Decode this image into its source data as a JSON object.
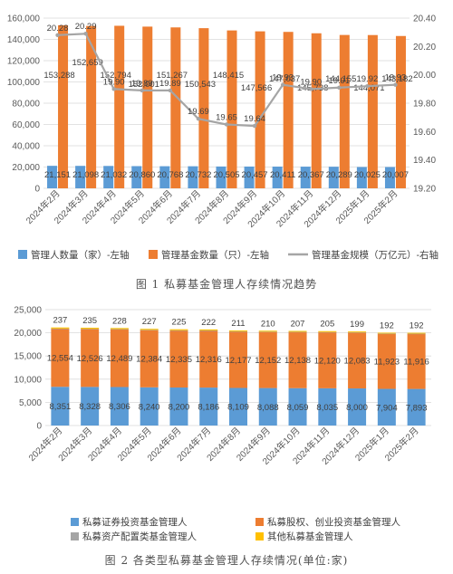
{
  "chart_data": [
    {
      "type": "bar",
      "caption": "图 1  私募基金管理人存续情况趋势",
      "categories": [
        "2024年2月",
        "2024年3月",
        "2024年4月",
        "2024年5月",
        "2024年6月",
        "2024年7月",
        "2024年8月",
        "2024年9月",
        "2024年10月",
        "2024年11月",
        "2024年12月",
        "2025年1月",
        "2025年2月"
      ],
      "series": [
        {
          "name": "管理人数量（家）-左轴",
          "axis": "left",
          "type": "bar",
          "color": "#5B9BD5",
          "values": [
            21151,
            21098,
            21032,
            20860,
            20768,
            20732,
            20505,
            20457,
            20411,
            20367,
            20289,
            20025,
            20007
          ],
          "labels": [
            "21,151",
            "21,098",
            "21,032",
            "20,860",
            "20,768",
            "20,732",
            "20,505",
            "20,457",
            "20,411",
            "20,367",
            "20,289",
            "20,025",
            "20,007"
          ]
        },
        {
          "name": "管理基金数量（只）-左轴",
          "axis": "left",
          "type": "bar",
          "color": "#ED7D31",
          "values": [
            153288,
            152659,
            152794,
            152001,
            151267,
            150543,
            148415,
            147566,
            147037,
            145738,
            144155,
            144071,
            143182
          ],
          "labels": [
            "153,288",
            "152,659",
            "152,794",
            "152,001",
            "151,267",
            "150,543",
            "148,415",
            "147,566",
            "147,037",
            "145,738",
            "144,155",
            "144,071",
            "143,182"
          ]
        },
        {
          "name": "管理基金规模（万亿元）-右轴",
          "axis": "right",
          "type": "line",
          "color": "#A5A5A5",
          "values": [
            20.28,
            20.29,
            19.9,
            19.89,
            19.89,
            19.69,
            19.65,
            19.64,
            19.93,
            19.9,
            19.91,
            19.92,
            19.93
          ],
          "labels": [
            "20.28",
            "20.29",
            "19.90",
            "19.89",
            "19.89",
            "19.69",
            "19.65",
            "19.64",
            "19.93",
            "19.90",
            "19.91",
            "19.92",
            "19.93"
          ]
        }
      ],
      "y_left": {
        "min": 0,
        "max": 160000,
        "ticks": [
          "0",
          "20,000",
          "40,000",
          "60,000",
          "80,000",
          "100,000",
          "120,000",
          "140,000",
          "160,000"
        ]
      },
      "y_right": {
        "min": 19.2,
        "max": 20.4,
        "ticks": [
          "19.20",
          "19.40",
          "19.60",
          "19.80",
          "20.00",
          "20.20",
          "20.40"
        ]
      },
      "legend_position": "bottom"
    },
    {
      "type": "bar",
      "stacked": true,
      "caption": "图 2  各类型私募基金管理人存续情况(单位:家)",
      "categories": [
        "2024年2月",
        "2024年3月",
        "2024年4月",
        "2024年5月",
        "2024年6月",
        "2024年7月",
        "2024年8月",
        "2024年9月",
        "2024年10月",
        "2024年11月",
        "2024年12月",
        "2025年1月",
        "2025年2月"
      ],
      "series": [
        {
          "name": "私募证券投资基金管理人",
          "color": "#5B9BD5",
          "values": [
            8351,
            8328,
            8306,
            8240,
            8200,
            8186,
            8109,
            8088,
            8059,
            8035,
            8000,
            7904,
            7893
          ],
          "labels": [
            "8,351",
            "8,328",
            "8,306",
            "8,240",
            "8,200",
            "8,186",
            "8,109",
            "8,088",
            "8,059",
            "8,035",
            "8,000",
            "7,904",
            "7,893"
          ]
        },
        {
          "name": "私募股权、创业投资基金管理人",
          "color": "#ED7D31",
          "values": [
            12554,
            12526,
            12489,
            12384,
            12335,
            12316,
            12177,
            12152,
            12138,
            12120,
            12083,
            11923,
            11916
          ],
          "labels": [
            "12,554",
            "12,526",
            "12,489",
            "12,384",
            "12,335",
            "12,316",
            "12,177",
            "12,152",
            "12,138",
            "12,120",
            "12,083",
            "11,923",
            "11,916"
          ]
        },
        {
          "name": "私募资产配置类基金管理人",
          "color": "#A5A5A5",
          "values": [
            9,
            9,
            9,
            9,
            8,
            8,
            8,
            7,
            7,
            7,
            7,
            6,
            6
          ],
          "labels": []
        },
        {
          "name": "其他私募基金管理人",
          "color": "#FFC000",
          "values": [
            237,
            235,
            228,
            227,
            225,
            222,
            211,
            210,
            207,
            205,
            199,
            192,
            192
          ],
          "labels": [
            "237",
            "235",
            "228",
            "227",
            "225",
            "222",
            "211",
            "210",
            "207",
            "205",
            "199",
            "192",
            "192"
          ]
        }
      ],
      "y_left": {
        "min": 0,
        "max": 25000,
        "ticks": [
          "0",
          "5,000",
          "10,000",
          "15,000",
          "20,000",
          "25,000"
        ]
      },
      "legend_position": "bottom"
    }
  ]
}
